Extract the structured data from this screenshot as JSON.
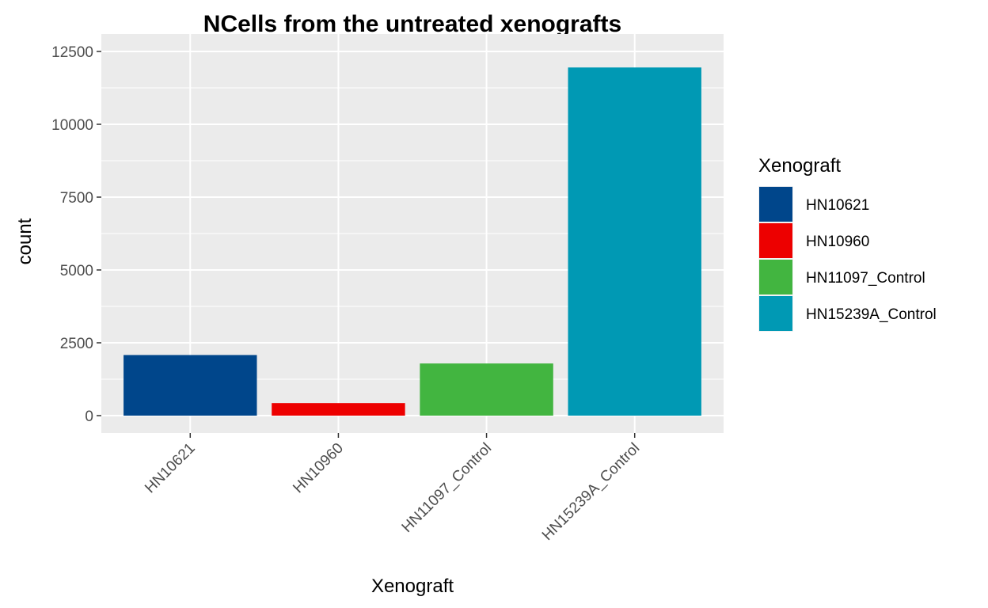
{
  "chart_data": {
    "type": "bar",
    "title": "NCells from the untreated xenografts",
    "xlabel": "Xenograft",
    "ylabel": "count",
    "categories": [
      "HN10621",
      "HN10960",
      "HN11097_Control",
      "HN15239A_Control"
    ],
    "values": [
      2080,
      430,
      1790,
      11950
    ],
    "colors": [
      "#00468B",
      "#ED0000",
      "#42B540",
      "#0099B4"
    ],
    "ylim": [
      0,
      12500
    ],
    "yticks": [
      0,
      2500,
      5000,
      7500,
      10000,
      12500
    ],
    "grid": true,
    "panel_background": "#EBEBEB",
    "legend": {
      "title": "Xenograft",
      "placement": "right",
      "entries": [
        "HN10621",
        "HN10960",
        "HN11097_Control",
        "HN15239A_Control"
      ]
    }
  }
}
